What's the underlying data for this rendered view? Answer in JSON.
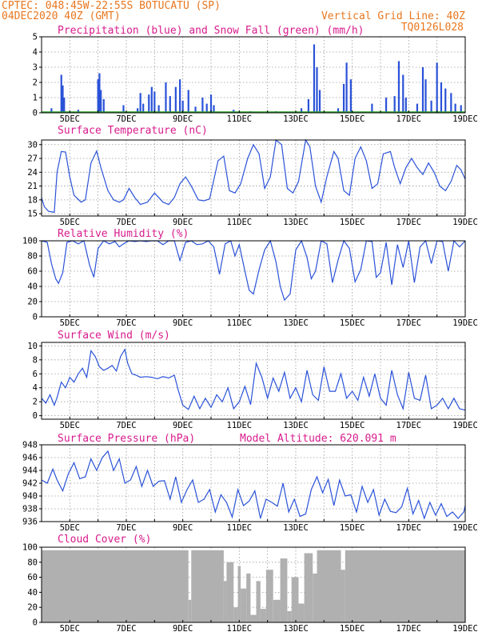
{
  "header": {
    "line1": "CPTEC:  048:45W-22:55S  BOTUCATU (SP)",
    "line2_left": "04DEC2020 40Z (GMT)",
    "line2_right": "Vertical Grid Line: 40Z",
    "line3_right": "TQ0126L028"
  },
  "colors": {
    "header": "#e8771f",
    "title": "#d81b8c",
    "series": "#2a52d8",
    "snow": "#2ca02c",
    "cloud": "#b0b0b0"
  },
  "panels": {
    "precip": {
      "title": "Precipitation (blue) and Snow Fall (green) (mm/h)"
    },
    "temp": {
      "title": "Surface Temperature (nC)"
    },
    "rh": {
      "title": "Relative Humidity (%)"
    },
    "wind": {
      "title": "Surface Wind (m/s)"
    },
    "pressure": {
      "title": "Surface Pressure (hPa)",
      "extra": "Model Altitude: 620.091 m"
    },
    "cloud": {
      "title": "Cloud Cover (%)"
    }
  },
  "chart_data": [
    {
      "type": "bar",
      "id": "precip",
      "title": "Precipitation (blue) and Snow Fall (green) (mm/h)",
      "x_ticks": [
        "5DEC",
        "7DEC",
        "9DEC",
        "11DEC",
        "13DEC",
        "15DEC",
        "17DEC",
        "19DEC"
      ],
      "x_range_days": [
        4.0,
        19.0
      ],
      "ylim": [
        0,
        5
      ],
      "yticks": [
        0,
        1,
        2,
        3,
        4,
        5
      ],
      "grid": true,
      "series": [
        {
          "name": "Precipitation",
          "points": [
            [
              4.35,
              0.3
            ],
            [
              4.7,
              2.5
            ],
            [
              4.75,
              1.8
            ],
            [
              4.8,
              1.0
            ],
            [
              5.3,
              0.2
            ],
            [
              6.0,
              2.2
            ],
            [
              6.05,
              2.6
            ],
            [
              6.1,
              1.5
            ],
            [
              6.2,
              0.9
            ],
            [
              6.9,
              0.5
            ],
            [
              7.4,
              0.3
            ],
            [
              7.5,
              1.3
            ],
            [
              7.6,
              0.6
            ],
            [
              7.8,
              1.2
            ],
            [
              7.9,
              1.7
            ],
            [
              8.0,
              1.4
            ],
            [
              8.15,
              0.5
            ],
            [
              8.4,
              2.0
            ],
            [
              8.55,
              1.1
            ],
            [
              8.75,
              1.7
            ],
            [
              8.9,
              2.2
            ],
            [
              9.0,
              0.8
            ],
            [
              9.2,
              1.5
            ],
            [
              9.45,
              0.4
            ],
            [
              9.7,
              1.0
            ],
            [
              9.85,
              0.6
            ],
            [
              10.0,
              1.2
            ],
            [
              10.1,
              0.5
            ],
            [
              10.8,
              0.2
            ],
            [
              11.4,
              0.1
            ],
            [
              12.3,
              0.1
            ],
            [
              13.2,
              0.3
            ],
            [
              13.45,
              0.9
            ],
            [
              13.65,
              4.5
            ],
            [
              13.75,
              3.0
            ],
            [
              13.85,
              1.5
            ],
            [
              14.5,
              0.3
            ],
            [
              14.7,
              1.9
            ],
            [
              14.8,
              3.3
            ],
            [
              14.95,
              2.2
            ],
            [
              15.7,
              0.6
            ],
            [
              16.2,
              1.0
            ],
            [
              16.5,
              1.1
            ],
            [
              16.65,
              3.4
            ],
            [
              16.8,
              2.5
            ],
            [
              16.9,
              1.0
            ],
            [
              17.3,
              0.6
            ],
            [
              17.5,
              3.0
            ],
            [
              17.6,
              2.2
            ],
            [
              17.8,
              0.8
            ],
            [
              18.0,
              3.3
            ],
            [
              18.15,
              2.0
            ],
            [
              18.3,
              1.6
            ],
            [
              18.5,
              1.3
            ],
            [
              18.65,
              0.6
            ],
            [
              18.85,
              0.5
            ]
          ]
        },
        {
          "name": "Snow Fall",
          "points": [
            [
              4.0,
              0.1
            ],
            [
              19.0,
              0.1
            ]
          ]
        }
      ]
    },
    {
      "type": "line",
      "id": "temp",
      "title": "Surface Temperature (nC)",
      "x_ticks": [
        "5DEC",
        "7DEC",
        "9DEC",
        "11DEC",
        "13DEC",
        "15DEC",
        "17DEC",
        "19DEC"
      ],
      "ylim": [
        14.5,
        31
      ],
      "yticks": [
        15,
        18,
        21,
        24,
        27,
        30
      ],
      "grid": true,
      "x": [
        4.0,
        4.1,
        4.25,
        4.45,
        4.55,
        4.7,
        4.85,
        5.0,
        5.15,
        5.4,
        5.55,
        5.75,
        5.95,
        6.1,
        6.35,
        6.55,
        6.75,
        6.9,
        7.1,
        7.3,
        7.5,
        7.75,
        8.0,
        8.3,
        8.5,
        8.7,
        8.9,
        9.1,
        9.3,
        9.55,
        9.75,
        9.95,
        10.25,
        10.45,
        10.65,
        10.85,
        11.05,
        11.3,
        11.5,
        11.7,
        11.9,
        12.1,
        12.3,
        12.5,
        12.7,
        12.9,
        13.1,
        13.35,
        13.5,
        13.7,
        13.9,
        14.1,
        14.35,
        14.5,
        14.7,
        14.9,
        15.1,
        15.3,
        15.5,
        15.7,
        15.9,
        16.1,
        16.35,
        16.5,
        16.7,
        16.9,
        17.1,
        17.3,
        17.5,
        17.7,
        17.9,
        18.1,
        18.3,
        18.5,
        18.7,
        18.85,
        19.0
      ],
      "y": [
        18.5,
        16.5,
        15.5,
        15.3,
        24,
        28.5,
        28.4,
        23,
        19,
        17.5,
        18,
        26,
        28.6,
        25,
        20,
        18,
        17.5,
        18,
        20.5,
        18.5,
        17,
        17.5,
        19.5,
        17.5,
        17,
        18.5,
        21.5,
        23,
        21,
        18,
        17.8,
        18.2,
        26.5,
        27.5,
        20,
        19.5,
        21.5,
        27,
        30,
        28,
        20.5,
        23,
        31,
        30,
        20.5,
        19.5,
        22,
        31,
        29.5,
        21,
        17.5,
        23,
        28.5,
        27,
        20,
        19,
        27,
        29.5,
        26.5,
        20.5,
        21.5,
        28,
        28.5,
        25,
        21.5,
        25,
        27,
        25,
        23.5,
        26,
        24,
        21,
        20,
        22,
        25.5,
        24.5,
        22.5
      ]
    },
    {
      "type": "line",
      "id": "rh",
      "title": "Relative Humidity (%)",
      "x_ticks": [
        "5DEC",
        "7DEC",
        "9DEC",
        "11DEC",
        "13DEC",
        "15DEC",
        "17DEC",
        "19DEC"
      ],
      "ylim": [
        0,
        100
      ],
      "yticks": [
        0,
        20,
        40,
        60,
        80,
        100
      ],
      "grid": true,
      "x": [
        4.0,
        4.2,
        4.35,
        4.5,
        4.6,
        4.75,
        4.9,
        5.1,
        5.3,
        5.5,
        5.7,
        5.85,
        6.0,
        6.2,
        6.4,
        6.6,
        6.75,
        6.9,
        7.1,
        7.3,
        7.5,
        7.7,
        7.9,
        8.1,
        8.3,
        8.5,
        8.7,
        8.9,
        9.1,
        9.3,
        9.5,
        9.7,
        9.9,
        10.1,
        10.3,
        10.5,
        10.7,
        10.85,
        11.0,
        11.2,
        11.35,
        11.5,
        11.7,
        11.9,
        12.1,
        12.3,
        12.45,
        12.6,
        12.8,
        13.0,
        13.2,
        13.4,
        13.55,
        13.7,
        13.9,
        14.1,
        14.3,
        14.5,
        14.7,
        14.9,
        15.1,
        15.3,
        15.5,
        15.7,
        15.85,
        16.0,
        16.2,
        16.4,
        16.6,
        16.8,
        17.0,
        17.2,
        17.4,
        17.6,
        17.8,
        18.0,
        18.2,
        18.4,
        18.6,
        18.8,
        19.0
      ],
      "y": [
        100,
        98,
        70,
        50,
        44,
        58,
        98,
        100,
        96,
        100,
        68,
        52,
        90,
        100,
        96,
        99,
        92,
        96,
        100,
        99,
        100,
        99,
        100,
        100,
        95,
        100,
        100,
        74,
        98,
        100,
        95,
        96,
        100,
        92,
        56,
        96,
        100,
        80,
        95,
        60,
        35,
        30,
        62,
        88,
        100,
        72,
        40,
        22,
        30,
        88,
        100,
        78,
        50,
        60,
        100,
        96,
        45,
        75,
        100,
        90,
        46,
        62,
        100,
        99,
        52,
        58,
        98,
        42,
        95,
        65,
        100,
        45,
        92,
        100,
        70,
        100,
        99,
        60,
        100,
        92,
        100
      ]
    },
    {
      "type": "line",
      "id": "wind",
      "title": "Surface Wind (m/s)",
      "x_ticks": [
        "5DEC",
        "7DEC",
        "9DEC",
        "11DEC",
        "13DEC",
        "15DEC",
        "17DEC",
        "19DEC"
      ],
      "ylim": [
        -0.5,
        10.5
      ],
      "yticks": [
        0,
        2,
        4,
        6,
        8,
        10
      ],
      "grid": true,
      "x": [
        4.0,
        4.15,
        4.3,
        4.45,
        4.55,
        4.7,
        4.85,
        5.0,
        5.15,
        5.3,
        5.45,
        5.6,
        5.75,
        5.9,
        6.05,
        6.2,
        6.35,
        6.5,
        6.65,
        6.8,
        6.95,
        7.05,
        7.2,
        7.35,
        7.5,
        7.7,
        7.9,
        8.1,
        8.3,
        8.5,
        8.7,
        8.85,
        9.0,
        9.2,
        9.4,
        9.6,
        9.8,
        10.0,
        10.2,
        10.4,
        10.6,
        10.8,
        11.0,
        11.2,
        11.4,
        11.6,
        11.8,
        12.0,
        12.2,
        12.4,
        12.6,
        12.8,
        13.0,
        13.2,
        13.4,
        13.6,
        13.8,
        14.0,
        14.2,
        14.4,
        14.6,
        14.8,
        15.0,
        15.2,
        15.4,
        15.6,
        15.8,
        16.0,
        16.2,
        16.4,
        16.6,
        16.8,
        17.0,
        17.2,
        17.4,
        17.6,
        17.8,
        18.0,
        18.2,
        18.4,
        18.6,
        18.8,
        19.0
      ],
      "y": [
        2.5,
        1.8,
        3.0,
        1.5,
        2.6,
        4.8,
        4.0,
        5.5,
        4.8,
        6.0,
        6.8,
        5.5,
        9.3,
        8.5,
        7.0,
        6.5,
        6.8,
        7.2,
        6.4,
        8.5,
        9.5,
        7.5,
        6.0,
        5.8,
        5.5,
        5.6,
        5.5,
        5.3,
        5.6,
        5.4,
        5.8,
        3.5,
        1.5,
        0.9,
        2.8,
        1.0,
        2.5,
        1.2,
        3.0,
        2.0,
        4.0,
        1.0,
        2.0,
        4.2,
        1.6,
        7.5,
        5.5,
        2.5,
        5.4,
        3.5,
        6.2,
        2.5,
        4.0,
        2.0,
        6.5,
        3.0,
        2.2,
        7.0,
        3.5,
        3.5,
        6.0,
        2.5,
        3.5,
        2.2,
        5.5,
        2.8,
        6.0,
        2.5,
        1.5,
        6.5,
        3.0,
        1.0,
        6.2,
        2.5,
        2.2,
        5.8,
        1.0,
        1.5,
        2.5,
        1.0,
        2.5,
        1.0,
        0.8
      ]
    },
    {
      "type": "line",
      "id": "pressure",
      "title": "Surface Pressure (hPa)",
      "x_ticks": [
        "5DEC",
        "7DEC",
        "9DEC",
        "11DEC",
        "13DEC",
        "15DEC",
        "17DEC",
        "19DEC"
      ],
      "ylim": [
        936,
        948
      ],
      "yticks": [
        936,
        938,
        940,
        942,
        944,
        946,
        948
      ],
      "grid": true,
      "x": [
        4.0,
        4.2,
        4.4,
        4.55,
        4.75,
        4.95,
        5.15,
        5.35,
        5.55,
        5.75,
        5.95,
        6.15,
        6.35,
        6.55,
        6.75,
        6.95,
        7.15,
        7.35,
        7.55,
        7.75,
        7.95,
        8.15,
        8.35,
        8.55,
        8.75,
        8.95,
        9.15,
        9.35,
        9.55,
        9.75,
        9.95,
        10.15,
        10.35,
        10.55,
        10.75,
        10.95,
        11.15,
        11.35,
        11.55,
        11.75,
        11.95,
        12.15,
        12.35,
        12.55,
        12.75,
        12.95,
        13.15,
        13.35,
        13.55,
        13.75,
        13.95,
        14.15,
        14.35,
        14.55,
        14.75,
        14.95,
        15.15,
        15.35,
        15.55,
        15.75,
        15.95,
        16.15,
        16.35,
        16.55,
        16.75,
        16.95,
        17.15,
        17.35,
        17.55,
        17.75,
        17.95,
        18.15,
        18.35,
        18.55,
        18.75,
        18.95,
        19.0
      ],
      "y": [
        942.5,
        942.0,
        944.2,
        942.5,
        940.8,
        943.5,
        945.2,
        942.7,
        943.0,
        945.8,
        944.0,
        946.0,
        947.0,
        944.0,
        945.8,
        942.0,
        942.5,
        944.6,
        941.5,
        944.0,
        941.5,
        942.3,
        942.4,
        939.5,
        943.0,
        939.0,
        941.0,
        942.5,
        939.0,
        939.5,
        941.0,
        937.5,
        940.2,
        939.0,
        936.7,
        941.0,
        938.5,
        939.2,
        940.8,
        936.5,
        939.5,
        939.0,
        938.4,
        942.0,
        937.5,
        939.5,
        936.8,
        937.2,
        941.0,
        943.0,
        940.5,
        942.6,
        938.5,
        942.5,
        940.0,
        940.2,
        937.5,
        941.5,
        939.0,
        941.0,
        937.0,
        939.5,
        937.6,
        937.4,
        938.3,
        941.2,
        937.2,
        939.3,
        936.5,
        939.0,
        937.0,
        938.8,
        936.8,
        937.5,
        936.5,
        937.5,
        938.5
      ]
    },
    {
      "type": "bar",
      "id": "cloud",
      "title": "Cloud Cover (%)",
      "x_ticks": [
        "5DEC",
        "7DEC",
        "9DEC",
        "11DEC",
        "13DEC",
        "15DEC",
        "17DEC",
        "19DEC"
      ],
      "ylim": [
        0,
        100
      ],
      "yticks": [
        0,
        20,
        40,
        60,
        80,
        100
      ],
      "grid": true,
      "segments": [
        [
          4.0,
          9.2,
          96
        ],
        [
          9.2,
          9.3,
          30
        ],
        [
          9.3,
          10.45,
          96
        ],
        [
          10.45,
          10.55,
          55
        ],
        [
          10.55,
          10.8,
          80
        ],
        [
          10.8,
          10.95,
          20
        ],
        [
          10.95,
          11.05,
          75
        ],
        [
          11.05,
          11.25,
          45
        ],
        [
          11.25,
          11.4,
          65
        ],
        [
          11.4,
          11.6,
          10
        ],
        [
          11.6,
          11.75,
          55
        ],
        [
          11.75,
          11.95,
          18
        ],
        [
          11.95,
          12.2,
          70
        ],
        [
          12.2,
          12.45,
          30
        ],
        [
          12.45,
          12.7,
          85
        ],
        [
          12.7,
          12.85,
          15
        ],
        [
          12.85,
          13.1,
          60
        ],
        [
          13.1,
          13.3,
          25
        ],
        [
          13.3,
          13.6,
          92
        ],
        [
          13.6,
          13.75,
          65
        ],
        [
          13.75,
          14.6,
          96
        ],
        [
          14.6,
          14.75,
          70
        ],
        [
          14.75,
          19.0,
          96
        ]
      ]
    }
  ]
}
